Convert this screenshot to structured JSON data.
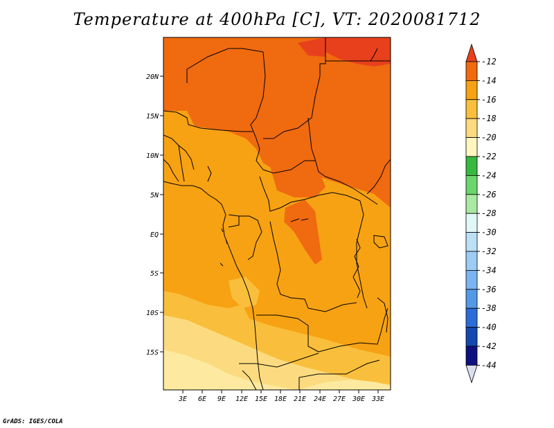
{
  "title": "Temperature at 400hPa [C], VT: 2020081712",
  "credit": "GrADS: IGES/COLA",
  "y_ticks": [
    "20N",
    "15N",
    "10N",
    "5N",
    "EQ",
    "5S",
    "10S",
    "15S"
  ],
  "x_ticks": [
    "3E",
    "6E",
    "9E",
    "12E",
    "15E",
    "18E",
    "21E",
    "24E",
    "27E",
    "30E",
    "33E"
  ],
  "colorbar": {
    "labels": [
      "-12",
      "-14",
      "-16",
      "-18",
      "-20",
      "-22",
      "-24",
      "-26",
      "-28",
      "-30",
      "-32",
      "-34",
      "-36",
      "-38",
      "-40",
      "-42",
      "-44"
    ],
    "colors": [
      "#e8401c",
      "#f06a10",
      "#f7a213",
      "#f9bf3c",
      "#fcdb80",
      "#fff6c0",
      "#38b83e",
      "#6bd66b",
      "#a9e9a2",
      "#e2f8f8",
      "#bde0f5",
      "#9ccbf4",
      "#7bb4f0",
      "#5499e6",
      "#2c6cd8",
      "#1448b0",
      "#0e1080",
      "#ddddf2"
    ]
  },
  "map_region": {
    "lon_range": [
      "0E",
      "34E"
    ],
    "lat_range": [
      "20S",
      "25N"
    ],
    "dominant_fill_colors": [
      "#f06a10",
      "#f7a213",
      "#f9bf3c",
      "#fcdb80",
      "#fdeaa0"
    ]
  }
}
